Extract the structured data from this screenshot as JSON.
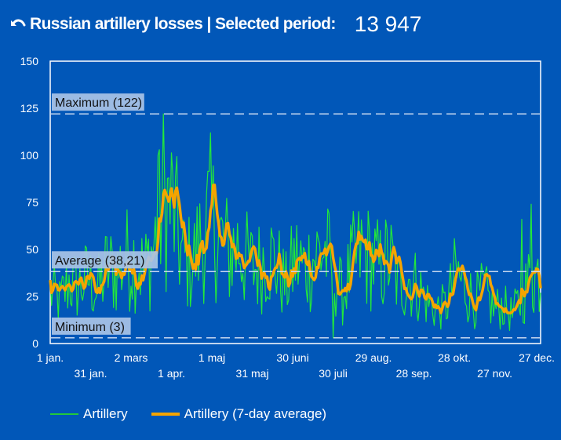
{
  "header": {
    "back_icon": "undo-arrow-icon",
    "title": "Russian artillery losses | Selected period:",
    "total": "13 947"
  },
  "colors": {
    "background": "#0157b8",
    "artillery": "#22e83a",
    "artillery_avg": "#f5a400",
    "reference_line": "#c8d8f0",
    "reference_label_bg": "#a9c3e6"
  },
  "legend": [
    {
      "label": "Artillery",
      "swatch": "thin-green-line"
    },
    {
      "label": "Artillery (7-day average)",
      "swatch": "thick-orange-line"
    }
  ],
  "chart_data": {
    "type": "line",
    "title": "Russian artillery losses",
    "xlabel": "",
    "ylabel": "",
    "ylim": [
      0,
      150
    ],
    "yticks": [
      0,
      25,
      50,
      75,
      100,
      125,
      150
    ],
    "x_range_days": [
      0,
      364
    ],
    "xticks": [
      {
        "day": 0,
        "label": "1 jan.",
        "row": 1
      },
      {
        "day": 30,
        "label": "31 jan.",
        "row": 2
      },
      {
        "day": 60,
        "label": "2 mars",
        "row": 1
      },
      {
        "day": 90,
        "label": "1 apr.",
        "row": 2
      },
      {
        "day": 120,
        "label": "1 maj",
        "row": 1
      },
      {
        "day": 150,
        "label": "31 maj",
        "row": 2
      },
      {
        "day": 180,
        "label": "30 juni",
        "row": 1
      },
      {
        "day": 210,
        "label": "30 juli",
        "row": 2
      },
      {
        "day": 240,
        "label": "29 aug.",
        "row": 1
      },
      {
        "day": 270,
        "label": "28 sep.",
        "row": 2
      },
      {
        "day": 300,
        "label": "28 okt.",
        "row": 1
      },
      {
        "day": 330,
        "label": "27 nov.",
        "row": 2
      },
      {
        "day": 360,
        "label": "27 dec.",
        "row": 1
      }
    ],
    "grid": false,
    "legend_position": "bottom-left",
    "reference_lines": [
      {
        "name": "maximum",
        "label": "Maximum (122)",
        "value": 122
      },
      {
        "name": "average",
        "label": "Average (38,21)",
        "value": 38.21
      },
      {
        "name": "minimum",
        "label": "Minimum (3)",
        "value": 3
      }
    ],
    "series": [
      {
        "name": "Artillery",
        "style": "thin-green",
        "note": "daily values (approximate reading, anchor points at roughly weekly intervals)",
        "anchor_days": [
          0,
          7,
          14,
          21,
          28,
          35,
          42,
          49,
          56,
          63,
          70,
          77,
          84,
          91,
          98,
          105,
          112,
          119,
          126,
          133,
          140,
          147,
          154,
          161,
          168,
          175,
          182,
          189,
          196,
          203,
          210,
          217,
          224,
          231,
          238,
          245,
          252,
          259,
          266,
          273,
          280,
          287,
          294,
          301,
          308,
          315,
          322,
          329,
          336,
          343,
          350,
          357,
          364
        ],
        "anchor_values": [
          28,
          22,
          33,
          30,
          35,
          28,
          40,
          38,
          45,
          45,
          38,
          52,
          76,
          72,
          45,
          42,
          55,
          68,
          55,
          48,
          52,
          42,
          40,
          48,
          42,
          30,
          45,
          40,
          46,
          50,
          40,
          25,
          42,
          48,
          45,
          40,
          45,
          30,
          35,
          30,
          22,
          18,
          20,
          37,
          30,
          22,
          28,
          18,
          20,
          15,
          25,
          35,
          38
        ]
      },
      {
        "name": "Artillery (7-day average)",
        "style": "thick-orange",
        "anchor_days": [
          0,
          7,
          14,
          21,
          28,
          35,
          42,
          49,
          56,
          63,
          70,
          77,
          84,
          91,
          98,
          105,
          112,
          119,
          126,
          133,
          140,
          147,
          154,
          161,
          168,
          175,
          182,
          189,
          196,
          203,
          210,
          217,
          224,
          231,
          238,
          245,
          252,
          259,
          266,
          273,
          280,
          287,
          294,
          301,
          308,
          315,
          322,
          329,
          336,
          343,
          350,
          357,
          364
        ],
        "anchor_values": [
          28,
          22,
          33,
          30,
          35,
          28,
          40,
          38,
          45,
          45,
          38,
          52,
          76,
          72,
          45,
          42,
          55,
          68,
          55,
          48,
          52,
          42,
          40,
          48,
          42,
          30,
          45,
          40,
          46,
          50,
          40,
          25,
          42,
          48,
          45,
          40,
          45,
          30,
          35,
          30,
          22,
          18,
          20,
          37,
          30,
          22,
          28,
          18,
          20,
          15,
          25,
          35,
          38
        ]
      }
    ]
  }
}
